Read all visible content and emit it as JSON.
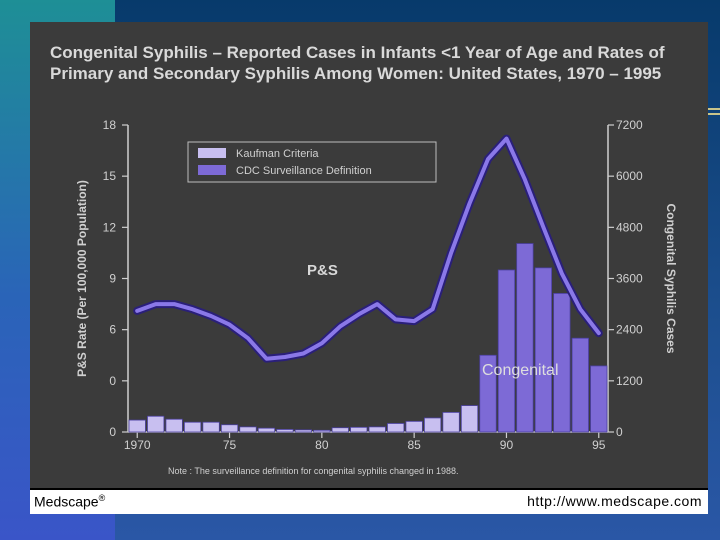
{
  "chart_data": {
    "type": "bar",
    "title_line1": "Congenital Syphilis – Reported Cases in Infants <1 Year of Age and Rates of",
    "title_line2": "Primary and Secondary Syphilis Among Women: United States, 1970 – 1995",
    "ylabel_left": "P&S Rate (Per 100,000 Population)",
    "ylabel_right": "Congenital Syphilis Cases",
    "left_ticks": [
      "18",
      "15",
      "12",
      "9",
      "6",
      "0",
      "0"
    ],
    "right_ticks": [
      "7200",
      "6000",
      "4800",
      "3600",
      "2400",
      "1200",
      "0"
    ],
    "x_ticks": [
      {
        "year": 1970,
        "label": "1970"
      },
      {
        "year": 1975,
        "label": "75"
      },
      {
        "year": 1980,
        "label": "80"
      },
      {
        "year": 1985,
        "label": "85"
      },
      {
        "year": 1990,
        "label": "90"
      },
      {
        "year": 1995,
        "label": "95"
      }
    ],
    "legend": [
      {
        "name": "Kaufman Criteria",
        "color": "#c8bff0"
      },
      {
        "name": "CDC Surveillance Definition",
        "color": "#7d6ad6"
      }
    ],
    "bars_kaufman": {
      "years": [
        1970,
        1971,
        1972,
        1973,
        1974,
        1975,
        1976,
        1977,
        1978,
        1979,
        1980,
        1981,
        1982,
        1983,
        1984,
        1985,
        1986,
        1987,
        1988
      ],
      "values": [
        280,
        370,
        300,
        230,
        230,
        170,
        120,
        90,
        60,
        50,
        40,
        100,
        110,
        120,
        200,
        250,
        330,
        460,
        620
      ]
    },
    "bars_cdc": {
      "years": [
        1989,
        1990,
        1991,
        1992,
        1993,
        1994,
        1995
      ],
      "values": [
        1800,
        3800,
        4420,
        3850,
        3250,
        2200,
        1550
      ]
    },
    "ps_line": {
      "name": "P&S",
      "x": [
        1970,
        1971,
        1972,
        1973,
        1974,
        1975,
        1976,
        1977,
        1978,
        1979,
        1980,
        1981,
        1982,
        1983,
        1984,
        1985,
        1986,
        1987,
        1988,
        1989,
        1990,
        1991,
        1992,
        1993,
        1994,
        1995
      ],
      "y": [
        7.1,
        7.5,
        7.5,
        7.2,
        6.8,
        6.3,
        5.5,
        4.3,
        4.4,
        4.6,
        5.2,
        6.2,
        6.9,
        7.5,
        6.6,
        6.5,
        7.2,
        10.5,
        13.4,
        16.0,
        17.2,
        14.8,
        12.0,
        9.3,
        7.2,
        5.8
      ]
    },
    "annotations": {
      "ps_label": "P&S",
      "congenital_label": "Congenital",
      "note": "Note : The surveillance definition for congenital syphilis changed in 1988."
    }
  },
  "footer": {
    "left": "Medscape",
    "left_mark": "®",
    "right": "http://www.medscape.com"
  }
}
